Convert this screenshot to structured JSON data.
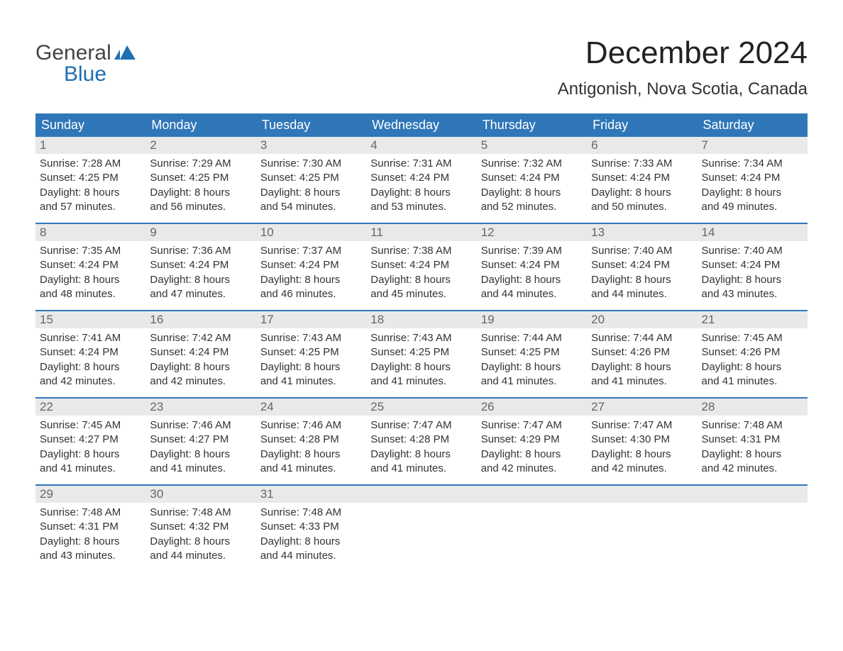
{
  "branding": {
    "logo_top": "General",
    "logo_bottom": "Blue",
    "logo_top_color": "#444444",
    "logo_bottom_color": "#1f6fb2",
    "flag_color": "#1f6fb2"
  },
  "header": {
    "month_title": "December 2024",
    "location": "Antigonish, Nova Scotia, Canada"
  },
  "style": {
    "header_row_bg": "#2f77b8",
    "header_row_text": "#ffffff",
    "daynum_bg": "#e9e9e9",
    "daynum_color": "#666666",
    "week_border_color": "#2f77b8",
    "body_text_color": "#333333",
    "page_bg": "#ffffff",
    "dow_fontsize": 18,
    "daynum_fontsize": 17,
    "body_fontsize": 15,
    "title_fontsize": 44,
    "location_fontsize": 24
  },
  "days_of_week": [
    "Sunday",
    "Monday",
    "Tuesday",
    "Wednesday",
    "Thursday",
    "Friday",
    "Saturday"
  ],
  "weeks": [
    [
      {
        "n": "1",
        "sr": "Sunrise: 7:28 AM",
        "ss": "Sunset: 4:25 PM",
        "d1": "Daylight: 8 hours",
        "d2": "and 57 minutes."
      },
      {
        "n": "2",
        "sr": "Sunrise: 7:29 AM",
        "ss": "Sunset: 4:25 PM",
        "d1": "Daylight: 8 hours",
        "d2": "and 56 minutes."
      },
      {
        "n": "3",
        "sr": "Sunrise: 7:30 AM",
        "ss": "Sunset: 4:25 PM",
        "d1": "Daylight: 8 hours",
        "d2": "and 54 minutes."
      },
      {
        "n": "4",
        "sr": "Sunrise: 7:31 AM",
        "ss": "Sunset: 4:24 PM",
        "d1": "Daylight: 8 hours",
        "d2": "and 53 minutes."
      },
      {
        "n": "5",
        "sr": "Sunrise: 7:32 AM",
        "ss": "Sunset: 4:24 PM",
        "d1": "Daylight: 8 hours",
        "d2": "and 52 minutes."
      },
      {
        "n": "6",
        "sr": "Sunrise: 7:33 AM",
        "ss": "Sunset: 4:24 PM",
        "d1": "Daylight: 8 hours",
        "d2": "and 50 minutes."
      },
      {
        "n": "7",
        "sr": "Sunrise: 7:34 AM",
        "ss": "Sunset: 4:24 PM",
        "d1": "Daylight: 8 hours",
        "d2": "and 49 minutes."
      }
    ],
    [
      {
        "n": "8",
        "sr": "Sunrise: 7:35 AM",
        "ss": "Sunset: 4:24 PM",
        "d1": "Daylight: 8 hours",
        "d2": "and 48 minutes."
      },
      {
        "n": "9",
        "sr": "Sunrise: 7:36 AM",
        "ss": "Sunset: 4:24 PM",
        "d1": "Daylight: 8 hours",
        "d2": "and 47 minutes."
      },
      {
        "n": "10",
        "sr": "Sunrise: 7:37 AM",
        "ss": "Sunset: 4:24 PM",
        "d1": "Daylight: 8 hours",
        "d2": "and 46 minutes."
      },
      {
        "n": "11",
        "sr": "Sunrise: 7:38 AM",
        "ss": "Sunset: 4:24 PM",
        "d1": "Daylight: 8 hours",
        "d2": "and 45 minutes."
      },
      {
        "n": "12",
        "sr": "Sunrise: 7:39 AM",
        "ss": "Sunset: 4:24 PM",
        "d1": "Daylight: 8 hours",
        "d2": "and 44 minutes."
      },
      {
        "n": "13",
        "sr": "Sunrise: 7:40 AM",
        "ss": "Sunset: 4:24 PM",
        "d1": "Daylight: 8 hours",
        "d2": "and 44 minutes."
      },
      {
        "n": "14",
        "sr": "Sunrise: 7:40 AM",
        "ss": "Sunset: 4:24 PM",
        "d1": "Daylight: 8 hours",
        "d2": "and 43 minutes."
      }
    ],
    [
      {
        "n": "15",
        "sr": "Sunrise: 7:41 AM",
        "ss": "Sunset: 4:24 PM",
        "d1": "Daylight: 8 hours",
        "d2": "and 42 minutes."
      },
      {
        "n": "16",
        "sr": "Sunrise: 7:42 AM",
        "ss": "Sunset: 4:24 PM",
        "d1": "Daylight: 8 hours",
        "d2": "and 42 minutes."
      },
      {
        "n": "17",
        "sr": "Sunrise: 7:43 AM",
        "ss": "Sunset: 4:25 PM",
        "d1": "Daylight: 8 hours",
        "d2": "and 41 minutes."
      },
      {
        "n": "18",
        "sr": "Sunrise: 7:43 AM",
        "ss": "Sunset: 4:25 PM",
        "d1": "Daylight: 8 hours",
        "d2": "and 41 minutes."
      },
      {
        "n": "19",
        "sr": "Sunrise: 7:44 AM",
        "ss": "Sunset: 4:25 PM",
        "d1": "Daylight: 8 hours",
        "d2": "and 41 minutes."
      },
      {
        "n": "20",
        "sr": "Sunrise: 7:44 AM",
        "ss": "Sunset: 4:26 PM",
        "d1": "Daylight: 8 hours",
        "d2": "and 41 minutes."
      },
      {
        "n": "21",
        "sr": "Sunrise: 7:45 AM",
        "ss": "Sunset: 4:26 PM",
        "d1": "Daylight: 8 hours",
        "d2": "and 41 minutes."
      }
    ],
    [
      {
        "n": "22",
        "sr": "Sunrise: 7:45 AM",
        "ss": "Sunset: 4:27 PM",
        "d1": "Daylight: 8 hours",
        "d2": "and 41 minutes."
      },
      {
        "n": "23",
        "sr": "Sunrise: 7:46 AM",
        "ss": "Sunset: 4:27 PM",
        "d1": "Daylight: 8 hours",
        "d2": "and 41 minutes."
      },
      {
        "n": "24",
        "sr": "Sunrise: 7:46 AM",
        "ss": "Sunset: 4:28 PM",
        "d1": "Daylight: 8 hours",
        "d2": "and 41 minutes."
      },
      {
        "n": "25",
        "sr": "Sunrise: 7:47 AM",
        "ss": "Sunset: 4:28 PM",
        "d1": "Daylight: 8 hours",
        "d2": "and 41 minutes."
      },
      {
        "n": "26",
        "sr": "Sunrise: 7:47 AM",
        "ss": "Sunset: 4:29 PM",
        "d1": "Daylight: 8 hours",
        "d2": "and 42 minutes."
      },
      {
        "n": "27",
        "sr": "Sunrise: 7:47 AM",
        "ss": "Sunset: 4:30 PM",
        "d1": "Daylight: 8 hours",
        "d2": "and 42 minutes."
      },
      {
        "n": "28",
        "sr": "Sunrise: 7:48 AM",
        "ss": "Sunset: 4:31 PM",
        "d1": "Daylight: 8 hours",
        "d2": "and 42 minutes."
      }
    ],
    [
      {
        "n": "29",
        "sr": "Sunrise: 7:48 AM",
        "ss": "Sunset: 4:31 PM",
        "d1": "Daylight: 8 hours",
        "d2": "and 43 minutes."
      },
      {
        "n": "30",
        "sr": "Sunrise: 7:48 AM",
        "ss": "Sunset: 4:32 PM",
        "d1": "Daylight: 8 hours",
        "d2": "and 44 minutes."
      },
      {
        "n": "31",
        "sr": "Sunrise: 7:48 AM",
        "ss": "Sunset: 4:33 PM",
        "d1": "Daylight: 8 hours",
        "d2": "and 44 minutes."
      },
      {
        "empty": true
      },
      {
        "empty": true
      },
      {
        "empty": true
      },
      {
        "empty": true
      }
    ]
  ]
}
